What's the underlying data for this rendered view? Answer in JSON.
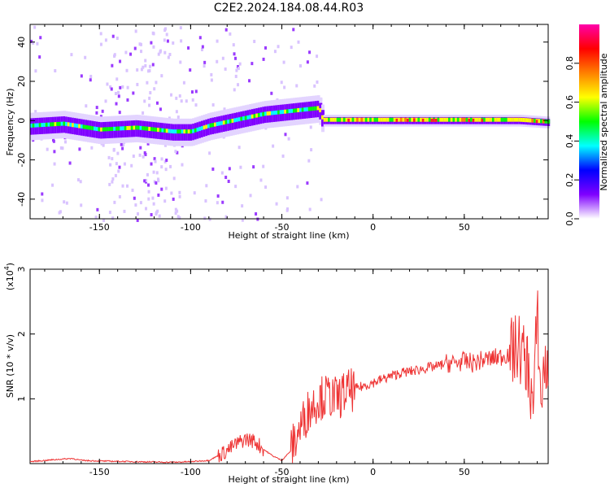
{
  "title": "C2E2.2024.184.08.44.R03",
  "chart_data": [
    {
      "type": "heatmap",
      "xlabel": "Height of straight line (km)",
      "ylabel": "Frequency (Hz)",
      "xlim": [
        -188,
        96
      ],
      "ylim": [
        -50,
        49
      ],
      "xticks": [
        -150,
        -100,
        -50,
        0,
        50
      ],
      "yticks": [
        -40,
        -20,
        0,
        20,
        40
      ],
      "colorbar": {
        "label": "Normalized spectral amplitude",
        "range": [
          0,
          1
        ],
        "ticks": [
          "0.0",
          "0.2",
          "0.4",
          "0.6",
          "0.8"
        ],
        "colors": [
          "#ffffff",
          "#7f00ff",
          "#0000ff",
          "#00ffff",
          "#00ff00",
          "#ffff00",
          "#ff8000",
          "#ff0000",
          "#ff00aa"
        ]
      },
      "ridge": {
        "x": [
          -188,
          -170,
          -150,
          -130,
          -110,
          -100,
          -90,
          -80,
          -70,
          -60,
          -50,
          -40,
          -30,
          -28,
          -20,
          0,
          20,
          40,
          60,
          80,
          96
        ],
        "y": [
          -3,
          -2,
          -5,
          -4,
          -6,
          -6,
          -3,
          -1,
          1,
          3,
          4,
          5,
          6,
          0,
          0,
          0,
          0,
          0,
          0,
          0,
          -1
        ]
      }
    },
    {
      "type": "line",
      "xlabel": "Height of straight line (km)",
      "ylabel": "SNR (10 * v/v)",
      "yscale_label": "(x10",
      "yscale_exp": "4",
      "yscale_close": ")",
      "xlim": [
        -188,
        96
      ],
      "ylim": [
        0,
        3
      ],
      "xticks": [
        -150,
        -100,
        -50,
        0,
        50
      ],
      "yticks": [
        1,
        2,
        3
      ],
      "color": "#ee3333",
      "series": [
        {
          "x": [
            -188,
            -175,
            -165,
            -160,
            -150,
            -130,
            -110,
            -100,
            -90,
            -85,
            -80,
            -75,
            -70,
            -65,
            -60,
            -55,
            -50,
            -45,
            -40,
            -35,
            -30,
            -25,
            -20,
            -15,
            -10,
            -5,
            0,
            5,
            10,
            15,
            20,
            25,
            30,
            35,
            40,
            45,
            50,
            55,
            60,
            65,
            70,
            75,
            80,
            85,
            88,
            90,
            92,
            94,
            96
          ],
          "y": [
            0.03,
            0.06,
            0.08,
            0.05,
            0.04,
            0.03,
            0.02,
            0.03,
            0.05,
            0.12,
            0.2,
            0.3,
            0.38,
            0.35,
            0.22,
            0.12,
            0.05,
            0.2,
            0.55,
            0.85,
            1.0,
            1.05,
            1.0,
            1.1,
            1.15,
            1.2,
            1.25,
            1.3,
            1.35,
            1.4,
            1.42,
            1.45,
            1.48,
            1.5,
            1.55,
            1.55,
            1.58,
            1.55,
            1.6,
            1.62,
            1.65,
            1.7,
            1.8,
            1.5,
            0.8,
            2.4,
            0.9,
            1.6,
            1.2
          ]
        }
      ]
    }
  ]
}
